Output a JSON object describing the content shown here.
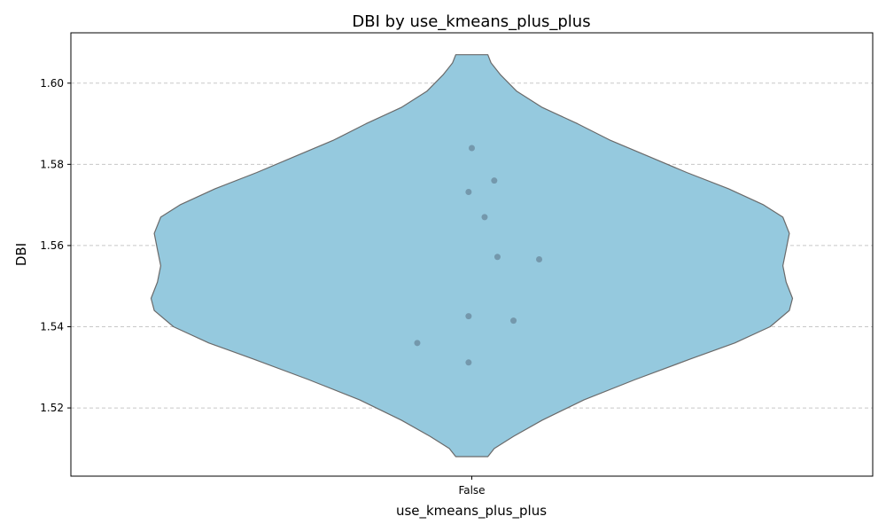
{
  "chart_data": {
    "type": "violin",
    "title": "DBI by use_kmeans_plus_plus",
    "xlabel": "use_kmeans_plus_plus",
    "ylabel": "DBI",
    "categories": [
      "False"
    ],
    "ylim": [
      1.5032,
      1.6124
    ],
    "yticks": [
      1.52,
      1.54,
      1.56,
      1.58,
      1.6
    ],
    "ytick_labels": [
      "1.52",
      "1.54",
      "1.56",
      "1.58",
      "1.60"
    ],
    "grid": "y-dashed",
    "violin": {
      "category": "False",
      "y_min": 1.508,
      "y_max": 1.607,
      "density_profile": [
        [
          1.508,
          0.05
        ],
        [
          1.51,
          0.07
        ],
        [
          1.513,
          0.13
        ],
        [
          1.517,
          0.22
        ],
        [
          1.522,
          0.35
        ],
        [
          1.527,
          0.51
        ],
        [
          1.532,
          0.68
        ],
        [
          1.536,
          0.82
        ],
        [
          1.54,
          0.93
        ],
        [
          1.544,
          0.99
        ],
        [
          1.547,
          1.0
        ],
        [
          1.551,
          0.98
        ],
        [
          1.555,
          0.97
        ],
        [
          1.559,
          0.98
        ],
        [
          1.563,
          0.99
        ],
        [
          1.567,
          0.97
        ],
        [
          1.57,
          0.91
        ],
        [
          1.574,
          0.8
        ],
        [
          1.578,
          0.67
        ],
        [
          1.582,
          0.55
        ],
        [
          1.586,
          0.43
        ],
        [
          1.59,
          0.33
        ],
        [
          1.594,
          0.22
        ],
        [
          1.598,
          0.14
        ],
        [
          1.602,
          0.09
        ],
        [
          1.605,
          0.06
        ],
        [
          1.607,
          0.05
        ]
      ],
      "fill": "#95c9de",
      "edge": "#6a6a6a"
    },
    "points": [
      {
        "x": 0.0,
        "y": 1.584
      },
      {
        "x": 0.07,
        "y": 1.576
      },
      {
        "x": -0.01,
        "y": 1.5732
      },
      {
        "x": 0.04,
        "y": 1.567
      },
      {
        "x": 0.08,
        "y": 1.5572
      },
      {
        "x": 0.21,
        "y": 1.5566
      },
      {
        "x": -0.01,
        "y": 1.5426
      },
      {
        "x": 0.13,
        "y": 1.5415
      },
      {
        "x": -0.17,
        "y": 1.536
      },
      {
        "x": -0.01,
        "y": 1.5312
      }
    ],
    "point_color": "#6f8fa3"
  }
}
